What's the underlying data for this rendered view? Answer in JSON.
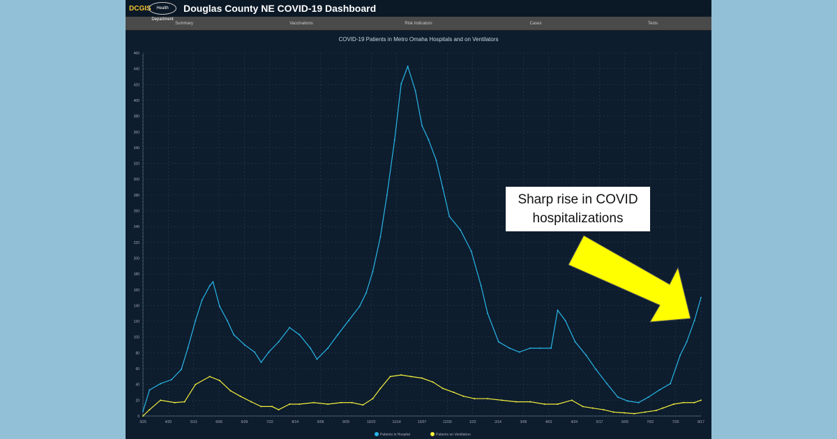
{
  "header": {
    "logo_text": "DCGIS",
    "health_logo": "Health Department",
    "title": "Douglas County NE COVID-19 Dashboard"
  },
  "nav": [
    "Summary",
    "Vaccinations",
    "Risk Indicators",
    "Cases",
    "Tests"
  ],
  "annotation": "Sharp rise in COVID hospitalizations",
  "colors": {
    "hospital": "#29b6e8",
    "ventilators": "#f5f03a",
    "arrow": "#ffff00"
  },
  "chart_data": {
    "type": "line",
    "title": "COVID-19 Patients in Metro Omaha Hospitals and on Ventilators",
    "xlabel": "",
    "ylabel": "",
    "ylim": [
      0,
      460
    ],
    "yticks": [
      0,
      20,
      40,
      60,
      80,
      100,
      120,
      140,
      160,
      180,
      200,
      220,
      240,
      260,
      280,
      300,
      320,
      340,
      360,
      380,
      400,
      420,
      440,
      460
    ],
    "xticks": [
      "3/25",
      "4/20",
      "5/13",
      "6/06",
      "6/29",
      "7/22",
      "8/14",
      "9/06",
      "9/29",
      "10/22",
      "11/14",
      "12/07",
      "12/30",
      "1/22",
      "2/14",
      "3/09",
      "4/01",
      "4/24",
      "5/17",
      "6/09",
      "7/02",
      "7/25",
      "8/17"
    ],
    "xlim_days": [
      0,
      510
    ],
    "legend": "bottom",
    "series": [
      {
        "name": "Patients in Hospital",
        "days": [
          0,
          6,
          16,
          26,
          35,
          41,
          48,
          54,
          61,
          64,
          70,
          77,
          83,
          93,
          102,
          108,
          115,
          124,
          134,
          143,
          153,
          159,
          169,
          178,
          188,
          198,
          204,
          210,
          217,
          223,
          230,
          236,
          242,
          249,
          255,
          261,
          268,
          274,
          280,
          290,
          300,
          309,
          315,
          325,
          335,
          344,
          354,
          363,
          373,
          379,
          386,
          395,
          405,
          414,
          424,
          434,
          443,
          453,
          462,
          472,
          482,
          491,
          497,
          504,
          510
        ],
        "values": [
          6,
          33,
          41,
          46,
          59,
          86,
          121,
          147,
          165,
          170,
          139,
          121,
          103,
          90,
          81,
          68,
          81,
          94,
          112,
          103,
          86,
          72,
          86,
          103,
          121,
          139,
          156,
          183,
          227,
          280,
          350,
          421,
          443,
          412,
          368,
          350,
          324,
          289,
          253,
          236,
          209,
          165,
          130,
          94,
          86,
          81,
          86,
          86,
          86,
          134,
          121,
          94,
          77,
          59,
          41,
          24,
          19,
          17,
          24,
          33,
          41,
          77,
          94,
          121,
          150
        ]
      },
      {
        "name": "Patients on Ventilators",
        "days": [
          0,
          6,
          16,
          29,
          38,
          48,
          61,
          70,
          80,
          89,
          99,
          108,
          118,
          124,
          134,
          143,
          156,
          169,
          181,
          191,
          201,
          210,
          217,
          226,
          236,
          245,
          255,
          265,
          274,
          284,
          293,
          303,
          315,
          328,
          341,
          354,
          367,
          379,
          392,
          402,
          411,
          421,
          430,
          440,
          449,
          459,
          469,
          475,
          485,
          494,
          504,
          510
        ],
        "values": [
          0,
          8,
          20,
          17,
          18,
          40,
          50,
          45,
          32,
          25,
          18,
          12,
          12,
          8,
          15,
          15,
          17,
          15,
          17,
          17,
          14,
          22,
          35,
          50,
          52,
          50,
          48,
          43,
          35,
          30,
          25,
          22,
          22,
          20,
          18,
          18,
          15,
          15,
          20,
          12,
          10,
          8,
          5,
          4,
          3,
          5,
          7,
          10,
          15,
          17,
          17,
          20
        ]
      }
    ]
  }
}
